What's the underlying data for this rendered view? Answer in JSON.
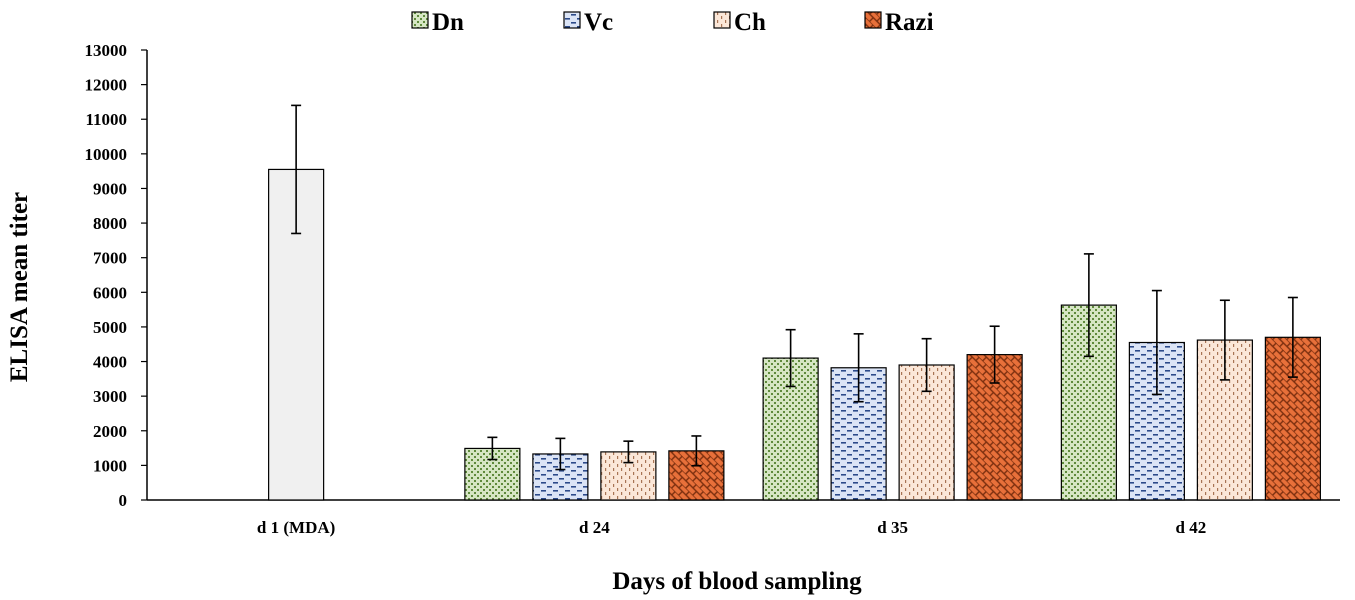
{
  "chart_data": {
    "type": "bar",
    "title": "",
    "xlabel": "Days of blood sampling",
    "ylabel": "ELISA mean titer",
    "ylim": [
      0,
      13000
    ],
    "ytick_step": 1000,
    "grid": false,
    "legend_position": "top",
    "categories": [
      "d 1 (MDA)",
      "d 24",
      "d 35",
      "d 42"
    ],
    "mda": {
      "category": "d 1 (MDA)",
      "value": 9550,
      "error": 1850,
      "color": "#f0f0f0"
    },
    "series": [
      {
        "name": "Dn",
        "color": "#d6e6c4",
        "values": [
          null,
          1490,
          4100,
          5630
        ],
        "errors": [
          null,
          320,
          820,
          1480
        ]
      },
      {
        "name": "Vc",
        "color": "#d6e0f4",
        "values": [
          null,
          1330,
          3820,
          4550
        ],
        "errors": [
          null,
          450,
          980,
          1500
        ]
      },
      {
        "name": "Ch",
        "color": "#f9e4d4",
        "values": [
          null,
          1390,
          3900,
          4620
        ],
        "errors": [
          null,
          310,
          760,
          1150
        ]
      },
      {
        "name": "Razi",
        "color": "#e8703a",
        "values": [
          null,
          1420,
          4200,
          4700
        ],
        "errors": [
          null,
          430,
          820,
          1150
        ]
      }
    ]
  }
}
